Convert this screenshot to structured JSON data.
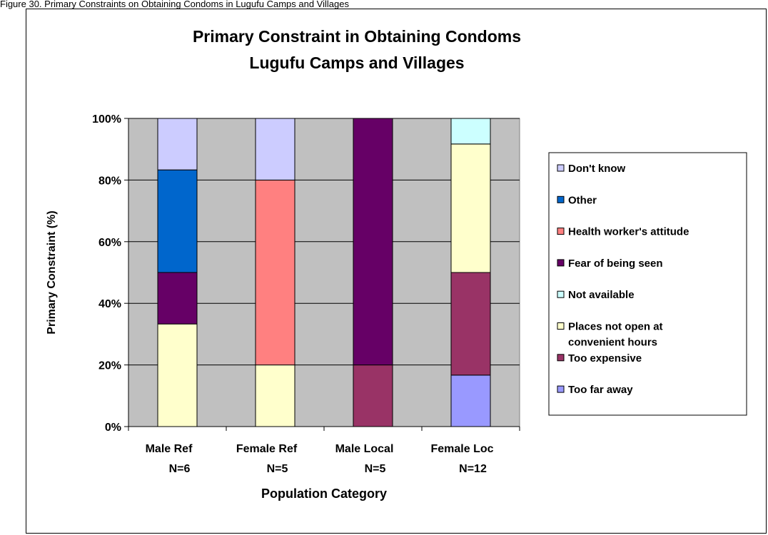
{
  "caption": "Figure 30.   Primary Constraints on Obtaining Condoms in Lugufu Camps and Villages",
  "chart_data": {
    "type": "bar",
    "stacked": true,
    "title": [
      "Primary Constraint in Obtaining Condoms",
      "Lugufu Camps and Villages"
    ],
    "xlabel": "Population Category",
    "ylabel": "Primary Constraint (%)",
    "ylim": [
      0,
      100
    ],
    "yticks": [
      "0%",
      "20%",
      "40%",
      "60%",
      "80%",
      "100%"
    ],
    "categories": [
      [
        "Male Ref",
        "N=6"
      ],
      [
        "Female Ref",
        "N=5"
      ],
      [
        "Male Local",
        "N=5"
      ],
      [
        "Female Loc",
        "N=12"
      ]
    ],
    "grid": true,
    "legend_position": "right",
    "series": [
      {
        "name": "Too far away",
        "color": "#9999FF",
        "values": [
          0,
          0,
          0,
          16.7
        ]
      },
      {
        "name": "Too expensive",
        "color": "#993366",
        "values": [
          0,
          0,
          20,
          33.3
        ]
      },
      {
        "name": "Places not open at convenient hours",
        "color": "#FFFFCC",
        "values": [
          33.3,
          20,
          0,
          41.7
        ]
      },
      {
        "name": "Not available",
        "color": "#CCFFFF",
        "values": [
          0,
          0,
          0,
          8.3
        ]
      },
      {
        "name": "Fear of being seen",
        "color": "#660066",
        "values": [
          16.7,
          0,
          80,
          0
        ]
      },
      {
        "name": "Health worker's attitude",
        "color": "#FF8080",
        "values": [
          0,
          60,
          0,
          0
        ]
      },
      {
        "name": "Other",
        "color": "#0066CC",
        "values": [
          33.3,
          0,
          0,
          0
        ]
      },
      {
        "name": "Don't know",
        "color": "#CCCCFF",
        "values": [
          16.7,
          20,
          0,
          0
        ]
      }
    ],
    "legend_order": [
      "Don't know",
      "Other",
      "Health worker's attitude",
      "Fear of being seen",
      "Not available",
      "Places not open at convenient hours",
      "Too expensive",
      "Too far away"
    ],
    "plot_background": "#C0C0C0"
  }
}
